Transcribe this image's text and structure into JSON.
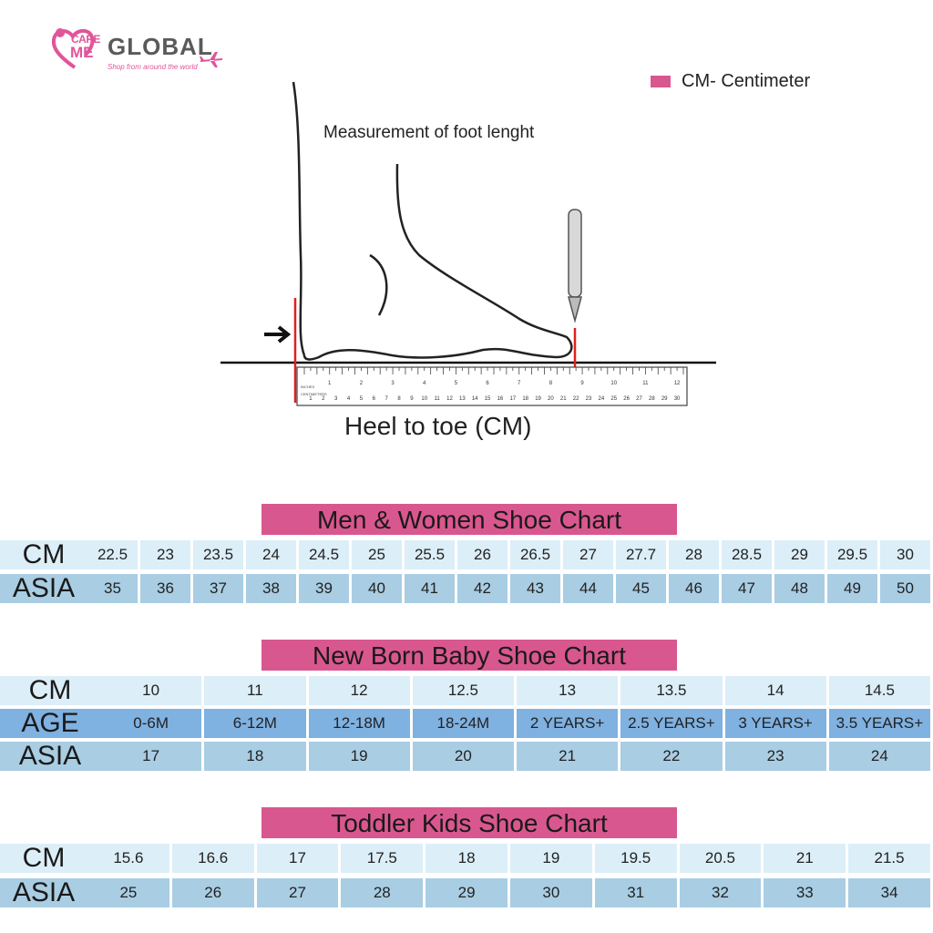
{
  "logo": {
    "care": "CARE",
    "me": "ME",
    "global": "GLOBAL",
    "tagline": "Shop from around the world"
  },
  "legend": {
    "label": "CM- Centimeter",
    "color": "#d9578f"
  },
  "diagram": {
    "top_caption": "Measurement of foot lenght",
    "bottom_caption": "Heel to toe (CM)",
    "ruler_inches_label": "INCHES",
    "ruler_cm_label": "CENTIMETERS",
    "inch_ticks": [
      "1",
      "2",
      "3",
      "4",
      "5",
      "6",
      "7",
      "8",
      "9",
      "10",
      "11",
      "12"
    ],
    "cm_ticks": [
      "1",
      "2",
      "3",
      "4",
      "5",
      "6",
      "7",
      "8",
      "9",
      "10",
      "11",
      "12",
      "13",
      "14",
      "15",
      "16",
      "17",
      "18",
      "19",
      "20",
      "21",
      "22",
      "23",
      "24",
      "25",
      "26",
      "27",
      "28",
      "29",
      "30"
    ]
  },
  "charts": {
    "men_women": {
      "title": "Men & Women Shoe Chart",
      "cm_label": "CM",
      "asia_label": "ASIA",
      "cm": [
        "22.5",
        "23",
        "23.5",
        "24",
        "24.5",
        "25",
        "25.5",
        "26",
        "26.5",
        "27",
        "27.7",
        "28",
        "28.5",
        "29",
        "29.5",
        "30"
      ],
      "asia": [
        "35",
        "36",
        "37",
        "38",
        "39",
        "40",
        "41",
        "42",
        "43",
        "44",
        "45",
        "46",
        "47",
        "48",
        "49",
        "50"
      ]
    },
    "baby": {
      "title": "New Born Baby Shoe Chart",
      "cm_label": "CM",
      "age_label": "AGE",
      "asia_label": "ASIA",
      "cm": [
        "10",
        "11",
        "12",
        "12.5",
        "13",
        "13.5",
        "14",
        "14.5"
      ],
      "age": [
        "0-6M",
        "6-12M",
        "12-18M",
        "18-24M",
        "2 YEARS+",
        "2.5 YEARS+",
        "3 YEARS+",
        "3.5 YEARS+"
      ],
      "asia": [
        "17",
        "18",
        "19",
        "20",
        "21",
        "22",
        "23",
        "24"
      ]
    },
    "toddler": {
      "title": "Toddler Kids Shoe Chart",
      "cm_label": "CM",
      "asia_label": "ASIA",
      "cm": [
        "15.6",
        "16.6",
        "17",
        "17.5",
        "18",
        "19",
        "19.5",
        "20.5",
        "21",
        "21.5"
      ],
      "asia": [
        "25",
        "26",
        "27",
        "28",
        "29",
        "30",
        "31",
        "32",
        "33",
        "34"
      ]
    }
  },
  "colors": {
    "accent_pink": "#d9578f",
    "row_light": "#dceef8",
    "row_mid": "#a9cde3",
    "row_blue": "#7fb1e1"
  }
}
